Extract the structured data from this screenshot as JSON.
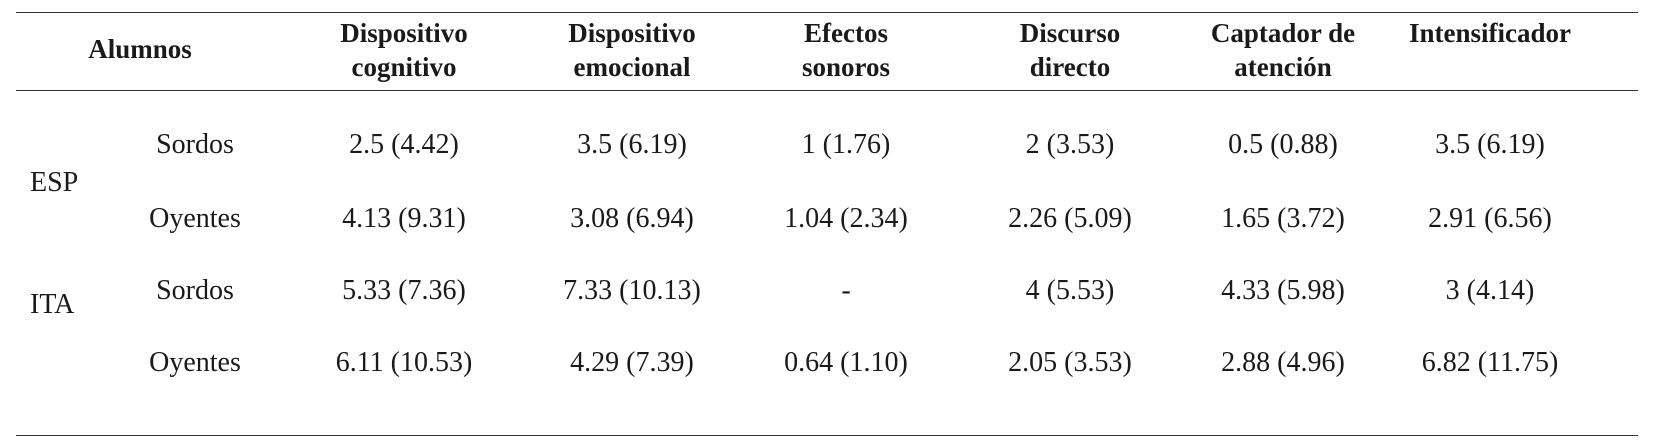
{
  "header": {
    "alumnos": "Alumnos",
    "col1": "Dispositivo cognitivo",
    "col2": "Dispositivo emocional",
    "col3": "Efectos sonoros",
    "col4": "Discurso directo",
    "col5": "Captador de atención",
    "col6": "Intensificador"
  },
  "groups": {
    "esp": "ESP",
    "ita": "ITA"
  },
  "rows": [
    {
      "label": "Sordos",
      "c1": "2.5 (4.42)",
      "c2": "3.5 (6.19)",
      "c3": "1 (1.76)",
      "c4": "2 (3.53)",
      "c5": "0.5 (0.88)",
      "c6": "3.5 (6.19)"
    },
    {
      "label": "Oyentes",
      "c1": "4.13 (9.31)",
      "c2": "3.08 (6.94)",
      "c3": "1.04 (2.34)",
      "c4": "2.26 (5.09)",
      "c5": "1.65 (3.72)",
      "c6": "2.91 (6.56)"
    },
    {
      "label": "Sordos",
      "c1": "5.33 (7.36)",
      "c2": "7.33 (10.13)",
      "c3": "-",
      "c4": "4 (5.53)",
      "c5": "4.33 (5.98)",
      "c6": "3 (4.14)"
    },
    {
      "label": "Oyentes",
      "c1": "6.11 (10.53)",
      "c2": "4.29 (7.39)",
      "c3": "0.64 (1.10)",
      "c4": "2.05 (3.53)",
      "c5": "2.88 (4.96)",
      "c6": "6.82 (11.75)"
    }
  ]
}
